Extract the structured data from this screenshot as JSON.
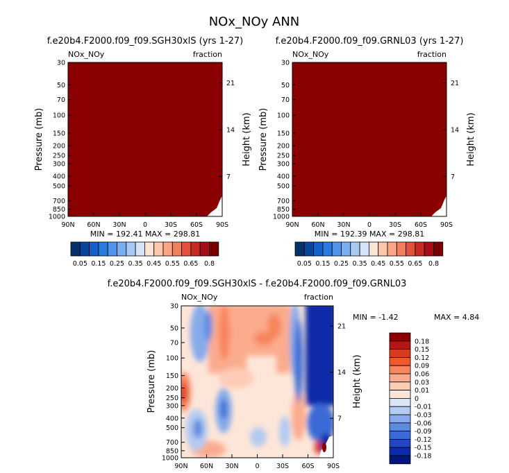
{
  "figure_title": "NOx_NOy ANN",
  "chart_data": [
    {
      "type": "heatmap",
      "title": "f.e20b4.F2000.f09_f09.SGH30xlS (yrs 1-27)",
      "variable_label": "NOx_NOy",
      "units_label": "fraction",
      "ylabel": "Pressure (mb)",
      "right_ylabel": "Height (km)",
      "x_ticks": [
        "90N",
        "60N",
        "30N",
        "0",
        "30S",
        "60S",
        "90S"
      ],
      "y_ticks": [
        "30",
        "50",
        "70",
        "100",
        "150",
        "200",
        "250",
        "300",
        "400",
        "500",
        "700",
        "850",
        "1000"
      ],
      "right_ticks": [
        "21",
        "14",
        "7"
      ],
      "minmax_text": "MIN = 192.41   MAX = 298.81",
      "field_color": "#8b0000",
      "colorbar_labels": [
        "0.05",
        "0.15",
        "0.25",
        "0.35",
        "0.45",
        "0.55",
        "0.65",
        "0.8"
      ]
    },
    {
      "type": "heatmap",
      "title": "f.e20b4.F2000.f09_f09.GRNL03 (yrs 1-27)",
      "variable_label": "NOx_NOy",
      "units_label": "fraction",
      "ylabel": "Pressure (mb)",
      "right_ylabel": "Height (km)",
      "x_ticks": [
        "90N",
        "60N",
        "30N",
        "0",
        "30S",
        "60S",
        "90S"
      ],
      "y_ticks": [
        "30",
        "50",
        "70",
        "100",
        "150",
        "200",
        "250",
        "300",
        "400",
        "500",
        "700",
        "850",
        "1000"
      ],
      "right_ticks": [
        "21",
        "14",
        "7"
      ],
      "minmax_text": "MIN = 192.39   MAX = 298.81",
      "field_color": "#8b0000",
      "colorbar_labels": [
        "0.05",
        "0.15",
        "0.25",
        "0.35",
        "0.45",
        "0.55",
        "0.65",
        "0.8"
      ]
    },
    {
      "type": "heatmap",
      "title": "f.e20b4.F2000.f09_f09.SGH30xlS - f.e20b4.F2000.f09_f09.GRNL03",
      "variable_label": "NOx_NOy",
      "units_label": "fraction",
      "ylabel": "Pressure (mb)",
      "right_ylabel": "Height (km)",
      "x_ticks": [
        "90N",
        "60N",
        "30N",
        "0",
        "30S",
        "60S",
        "90S"
      ],
      "y_ticks": [
        "30",
        "50",
        "70",
        "100",
        "150",
        "200",
        "250",
        "300",
        "400",
        "500",
        "700",
        "850",
        "1000"
      ],
      "right_ticks": [
        "21",
        "14",
        "7"
      ],
      "min_text": "MIN =  -1.42",
      "max_text": "MAX =    4.84",
      "colorbar_labels": [
        "0.18",
        "0.15",
        "0.12",
        "0.09",
        "0.06",
        "0.03",
        "0.01",
        "0",
        "-0.01",
        "-0.03",
        "-0.06",
        "-0.09",
        "-0.12",
        "-0.15",
        "-0.18"
      ]
    }
  ],
  "colors": {
    "seq_bar": [
      "#08306b",
      "#08469c",
      "#1561c8",
      "#2a7ae0",
      "#4f94ec",
      "#7aaef2",
      "#a9c9f5",
      "#d5e4f8",
      "#fbe4d6",
      "#fcc6ab",
      "#faa583",
      "#f27f5b",
      "#e2513a",
      "#c62a22",
      "#a50f15",
      "#7a0000"
    ],
    "div_bar": [
      "#8b0000",
      "#b81414",
      "#d83a1e",
      "#f0582e",
      "#f7855d",
      "#fbab8d",
      "#fdcbb6",
      "#fde6d8",
      "#d9e6f7",
      "#b3cbf1",
      "#86aaea",
      "#5d8be2",
      "#3a6ad6",
      "#1f49c4",
      "#0b2ca8",
      "#001780"
    ]
  }
}
